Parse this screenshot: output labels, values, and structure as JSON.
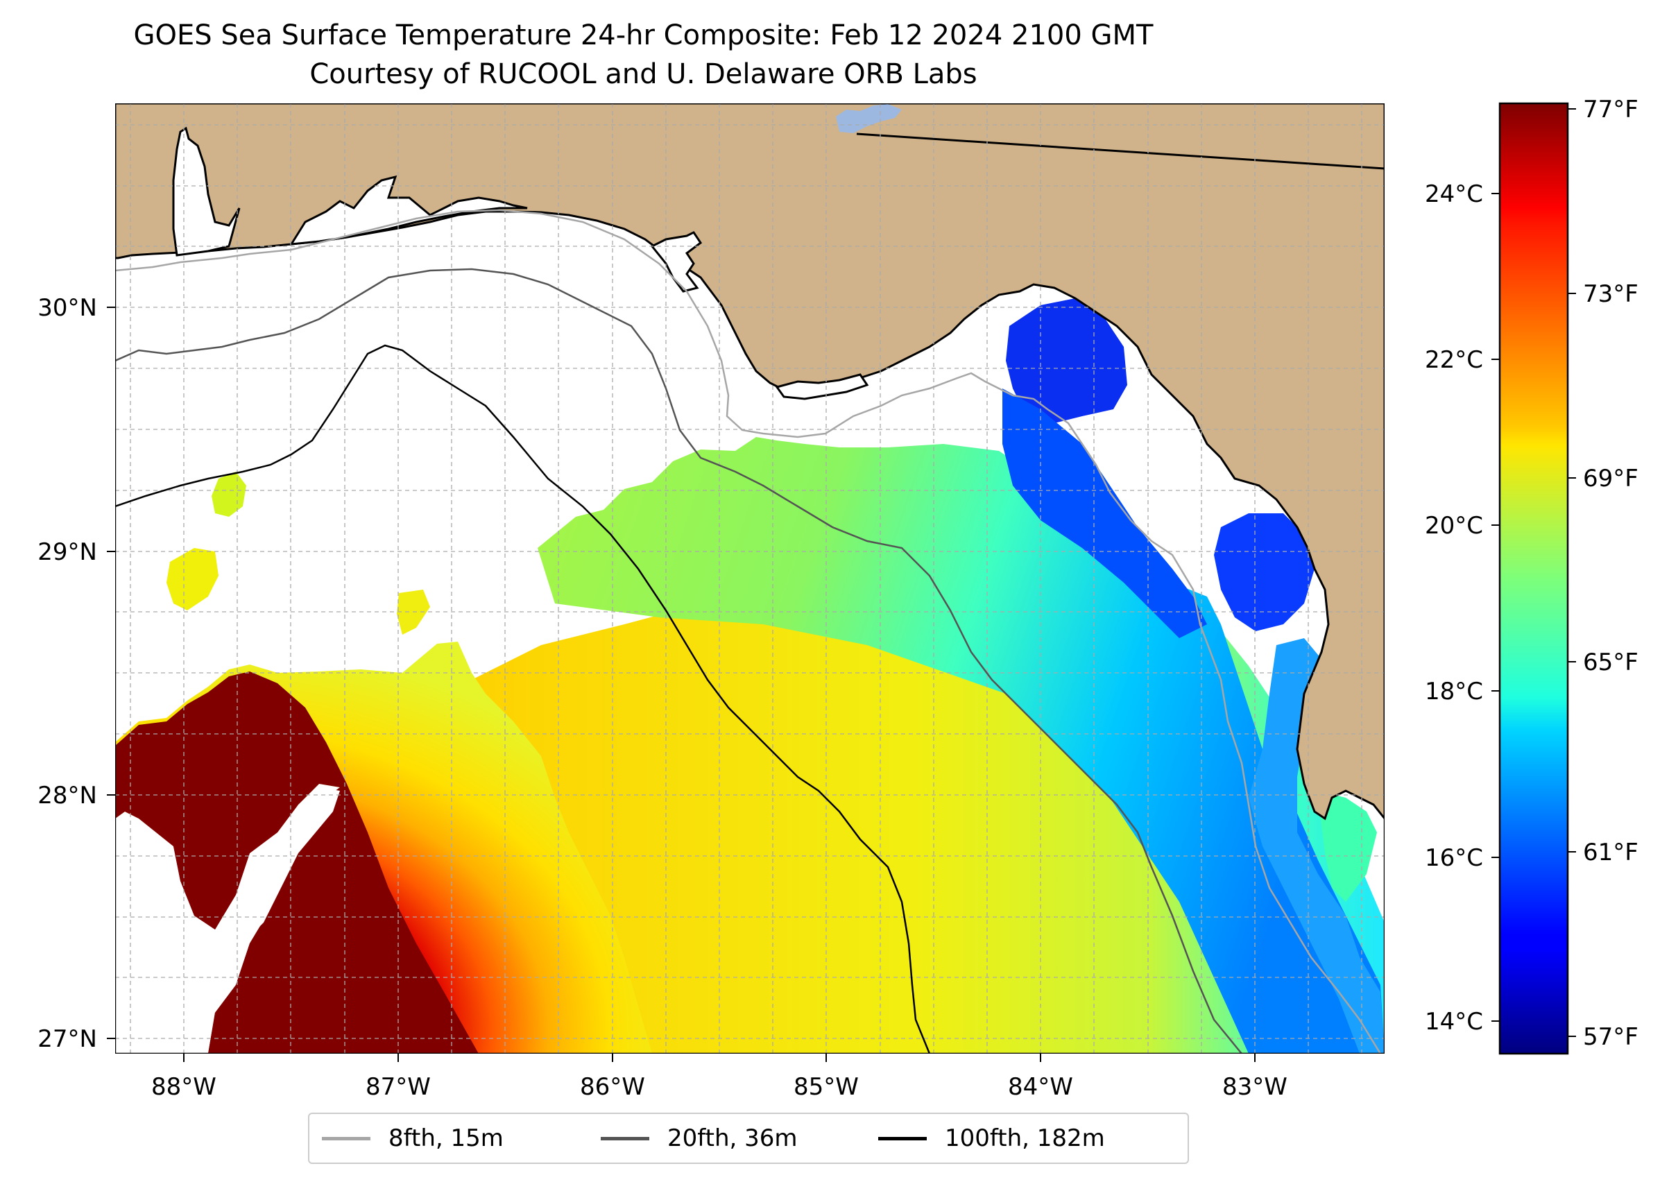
{
  "title": {
    "line1": "GOES Sea Surface Temperature 24-hr Composite: Feb 12 2024 2100 GMT",
    "line2": "Courtesy of RUCOOL and U. Delaware ORB Labs"
  },
  "map": {
    "lon_range": [
      -88.33,
      -82.4
    ],
    "lat_range": [
      26.93,
      30.84
    ],
    "lon_ticks": [
      {
        "value": -88,
        "label": "88°W"
      },
      {
        "value": -87,
        "label": "87°W"
      },
      {
        "value": -86,
        "label": "86°W"
      },
      {
        "value": -85,
        "label": "85°W"
      },
      {
        "value": -84,
        "label": "84°W"
      },
      {
        "value": -83,
        "label": "83°W"
      }
    ],
    "lat_ticks": [
      {
        "value": 27,
        "label": "27°N"
      },
      {
        "value": 28,
        "label": "28°N"
      },
      {
        "value": 29,
        "label": "29°N"
      },
      {
        "value": 30,
        "label": "30°N"
      }
    ],
    "gridlines": true,
    "colors": {
      "land": "#d0b38a",
      "water_no_data": "#ffffff",
      "coastline": "#000000",
      "lake": "#9db8e0"
    }
  },
  "colorbar": {
    "colormap": "jet",
    "range_c": [
      13.6,
      25.2
    ],
    "celsius_ticks": [
      {
        "value": 14,
        "label": "14°C"
      },
      {
        "value": 16,
        "label": "16°C"
      },
      {
        "value": 18,
        "label": "18°C"
      },
      {
        "value": 20,
        "label": "20°C"
      },
      {
        "value": 22,
        "label": "22°C"
      },
      {
        "value": 24,
        "label": "24°C"
      }
    ],
    "fahrenheit_ticks": [
      {
        "value": 57,
        "label": "57°F"
      },
      {
        "value": 61,
        "label": "61°F"
      },
      {
        "value": 65,
        "label": "65°F"
      },
      {
        "value": 69,
        "label": "69°F"
      },
      {
        "value": 73,
        "label": "73°F"
      },
      {
        "value": 77,
        "label": "77°F"
      }
    ]
  },
  "legend": {
    "placement": "bottom-center",
    "items": [
      {
        "label": "8fth, 15m",
        "color": "#a6a6a6"
      },
      {
        "label": "20fth, 36m",
        "color": "#545454"
      },
      {
        "label": "100fth, 182m",
        "color": "#000000"
      }
    ]
  }
}
